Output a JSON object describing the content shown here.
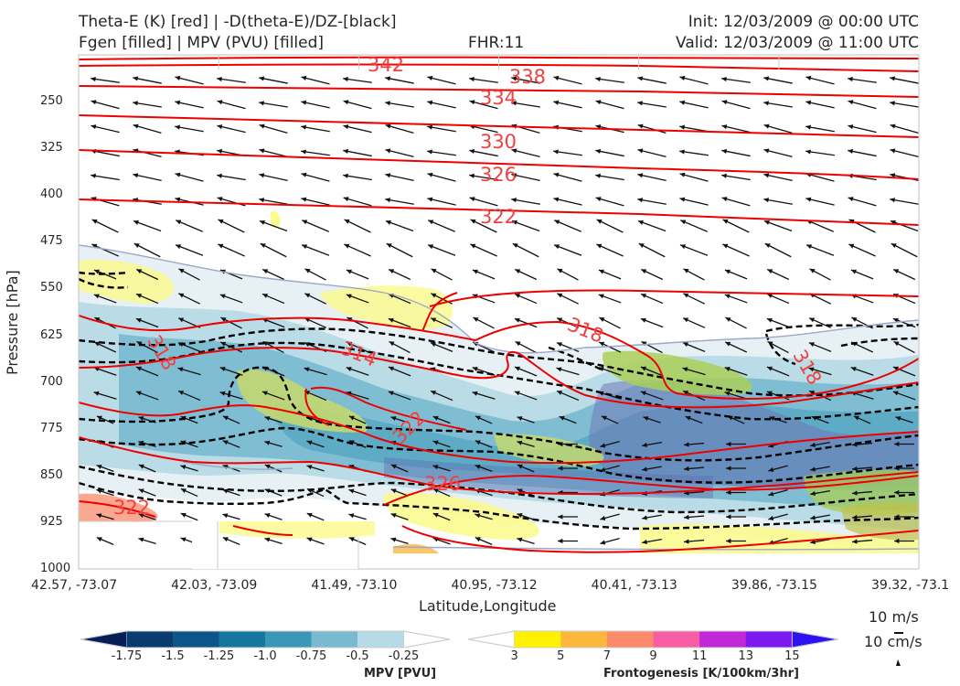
{
  "header": {
    "title_left_1": "Theta-E (K) [red] | -D(theta-E)/DZ-[black]",
    "title_left_2": "Fgen [filled] | MPV (PVU) [filled]",
    "fhr": "FHR:11",
    "init": "Init: 12/03/2009 @ 00:00 UTC",
    "valid": "Valid: 12/03/2009 @ 11:00 UTC"
  },
  "chart_data": {
    "type": "cross-section",
    "xlabel": "Latitude,Longitude",
    "ylabel": "Pressure [hPa]",
    "x_ticks": [
      "42.57, -73.07",
      "42.03, -73.09",
      "41.49, -73.10",
      "40.95, -73.12",
      "40.41, -73.13",
      "39.86, -73.15",
      "39.32, -73.1"
    ],
    "y_ticks": [
      250,
      325,
      400,
      475,
      550,
      625,
      700,
      775,
      850,
      925,
      1000
    ],
    "ylim": [
      1000,
      175
    ],
    "theta_e_contours": [
      {
        "label": "342",
        "level": 342
      },
      {
        "label": "338",
        "level": 338
      },
      {
        "label": "334",
        "level": 334
      },
      {
        "label": "330",
        "level": 330
      },
      {
        "label": "326",
        "level": 326
      },
      {
        "label": "322",
        "level": 322
      },
      {
        "label": "318",
        "level": 318
      },
      {
        "label": "314",
        "level": 314
      },
      {
        "label": "318",
        "level": 318
      },
      {
        "label": "318",
        "level": 318
      },
      {
        "label": "322",
        "level": 322
      },
      {
        "label": "326",
        "level": 326
      },
      {
        "label": "322",
        "level": 322
      }
    ],
    "mpv_colorbar": {
      "title": "MPV [PVU]",
      "ticks": [
        "-1.75",
        "-1.5",
        "-1.25",
        "-1.0",
        "-0.75",
        "-0.5",
        "-0.25"
      ],
      "colors": [
        "#081d58",
        "#0b3a70",
        "#0d5589",
        "#15769f",
        "#3a97b8",
        "#79bad1",
        "#b7dbe6",
        "#ffffff"
      ]
    },
    "fgen_colorbar": {
      "title": "Frontogenesis [K/100km/3hr]",
      "ticks": [
        "3",
        "5",
        "7",
        "9",
        "11",
        "13",
        "15"
      ],
      "colors": [
        "#ffffff",
        "#fff200",
        "#fdb73c",
        "#fb8a6a",
        "#f95ea5",
        "#c229d6",
        "#7c18f0",
        "#2e12f2"
      ]
    },
    "vector_key": {
      "horizontal": "10 m/s",
      "vertical": "10 cm/s"
    }
  }
}
